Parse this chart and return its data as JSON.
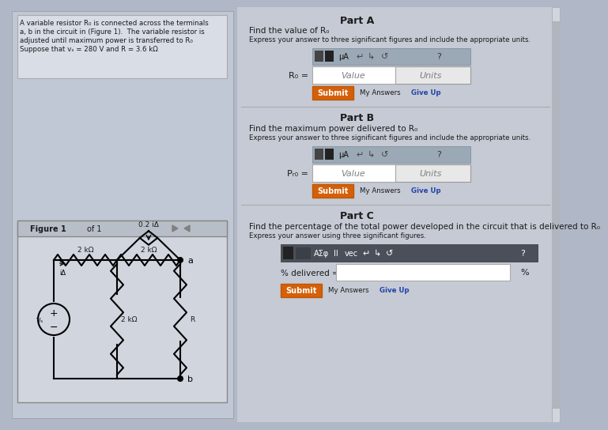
{
  "bg_color": "#b0b8c8",
  "panel_color": "#c8cdd8",
  "white": "#ffffff",
  "orange": "#d4600a",
  "dark_orange": "#c05500",
  "light_blue_toolbar": "#9aa8b8",
  "text_dark": "#1a1a1a",
  "text_blue": "#2244aa",
  "problem_text_line1": "A variable resistor R₀ is connected across the terminals",
  "problem_text_line2": "a, b in the circuit in (Figure 1).  The variable resistor is",
  "problem_text_line3": "adjusted until maximum power is transferred to R₀",
  "problem_text_line4": "Suppose that vₛ = 280 V and R = 3.6 kΩ",
  "partA_title": "Part A",
  "partA_q": "Find the value of R₀",
  "partA_expr": "Express your answer to three significant figures and include the appropriate units.",
  "partB_title": "Part B",
  "partB_q": "Find the maximum power delivered to R₀",
  "partB_expr": "Express your answer to three significant figures and include the appropriate units.",
  "partC_title": "Part C",
  "partC_q": "Find the percentage of the total power developed in the circuit that is delivered to R₀",
  "partC_expr": "Express your answer using three significant figures.",
  "figure_label": "Figure 1",
  "of1": "of 1",
  "R0_label": "R₀ =",
  "PR0_label": "Pᵣ₀ =",
  "value_text": "Value",
  "units_text": "Units",
  "submit_text": "Submit",
  "myanswers_text": "My Answers",
  "giveup_text": "Give Up",
  "percent_label": "% delivered =",
  "toolbar_icons": "μA",
  "question_mark": "?",
  "circuit_2kOhm_left": "2 kΩ",
  "circuit_2kOhm_top": "2 kΩ",
  "circuit_2kOhm_mid": "2 kΩ",
  "circuit_R": "R",
  "circuit_current": "0.2 iΔ",
  "circuit_ia": "iΔ",
  "circuit_a": "a",
  "circuit_b": "b",
  "circuit_vs": "vₛ"
}
